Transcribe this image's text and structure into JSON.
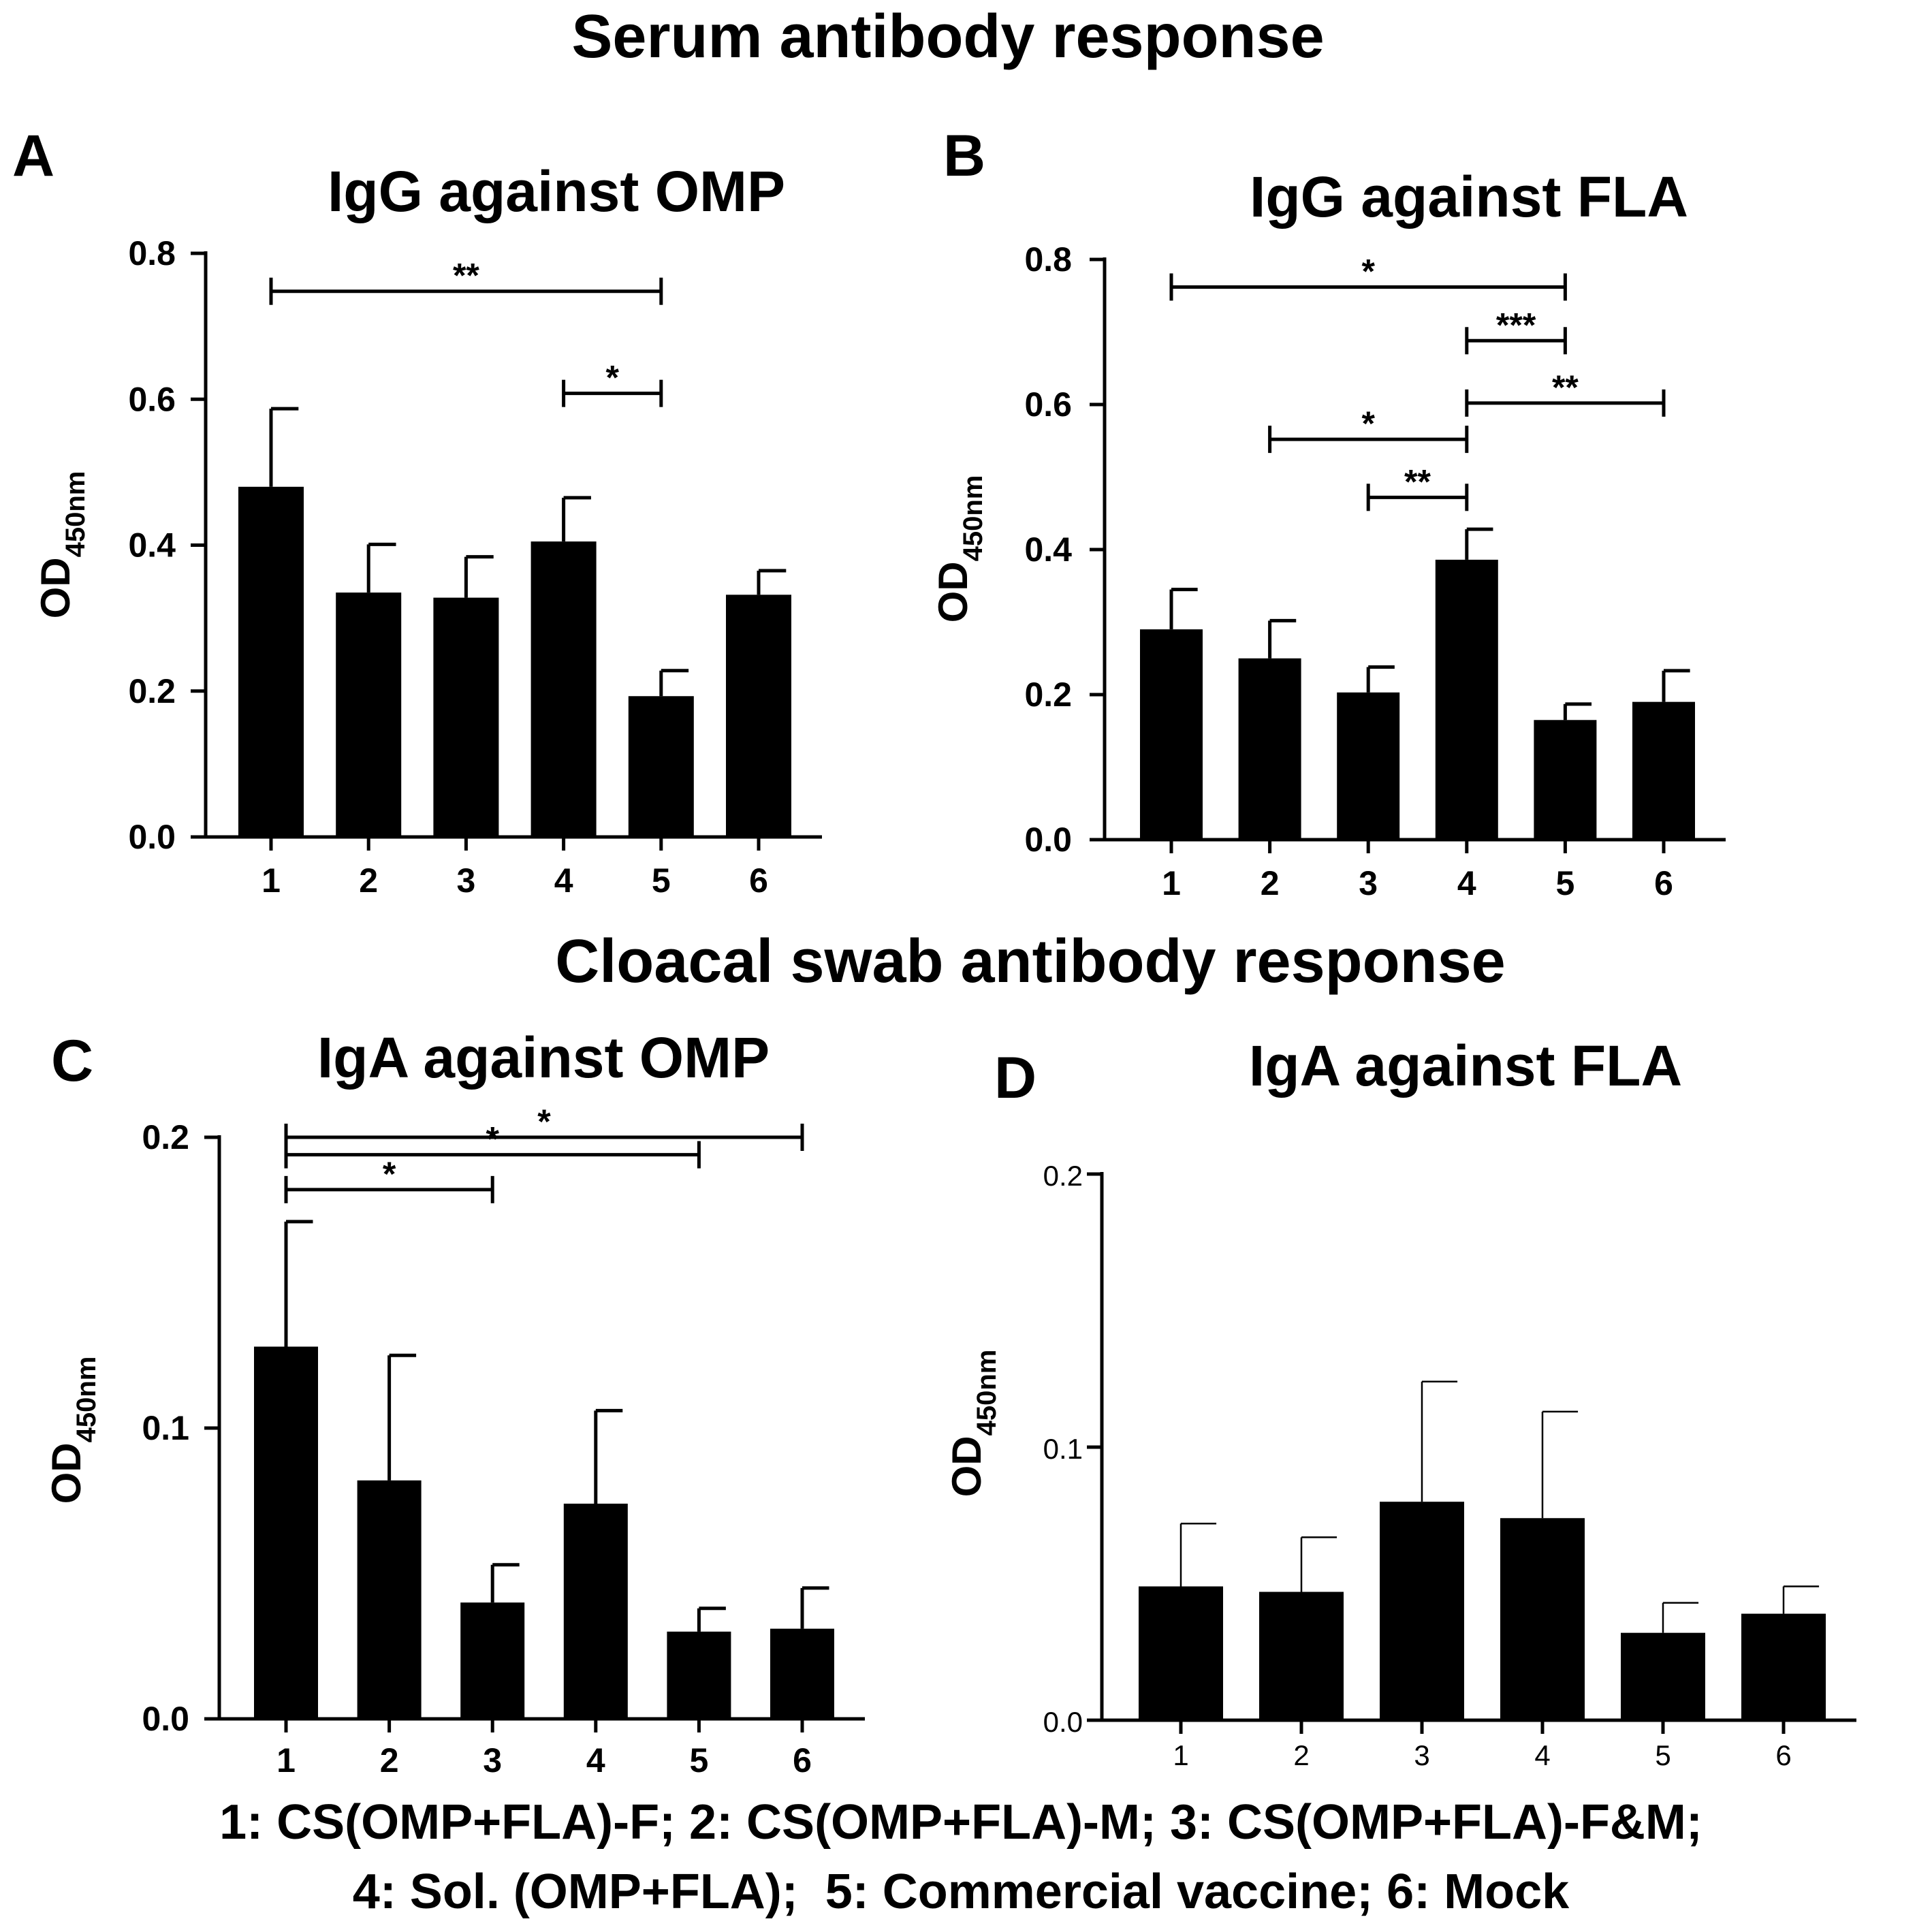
{
  "figure": {
    "section_titles": [
      "Serum antibody response",
      "Cloacal swab antibody response"
    ],
    "legend_lines": [
      "1: CS(OMP+FLA)-F; 2: CS(OMP+FLA)-M; 3: CS(OMP+FLA)-F&M;",
      "4: Sol. (OMP+FLA);  5: Commercial vaccine; 6: Mock"
    ]
  },
  "chart_data": [
    {
      "panel": "A",
      "type": "bar",
      "title": "IgG against OMP",
      "ylabel_main": "OD",
      "ylabel_sub": "450nm",
      "categories": [
        "1",
        "2",
        "3",
        "4",
        "5",
        "6"
      ],
      "values": [
        0.48,
        0.335,
        0.328,
        0.405,
        0.193,
        0.332
      ],
      "errors": [
        0.107,
        0.066,
        0.056,
        0.06,
        0.035,
        0.033
      ],
      "ylim": [
        0,
        0.8
      ],
      "yticks": [
        "0.0",
        "0.2",
        "0.4",
        "0.6",
        "0.8"
      ],
      "error_bar_style": "bold",
      "significance": [
        {
          "from": 1,
          "to": 5,
          "y": 0.748,
          "label": "**"
        },
        {
          "from": 4,
          "to": 5,
          "y": 0.608,
          "label": "*"
        }
      ]
    },
    {
      "panel": "B",
      "type": "bar",
      "title": "IgG against FLA",
      "ylabel_main": "OD",
      "ylabel_sub": "450nm",
      "categories": [
        "1",
        "2",
        "3",
        "4",
        "5",
        "6"
      ],
      "values": [
        0.29,
        0.25,
        0.203,
        0.386,
        0.165,
        0.19
      ],
      "errors": [
        0.055,
        0.052,
        0.035,
        0.042,
        0.022,
        0.043
      ],
      "ylim": [
        0,
        0.8
      ],
      "yticks": [
        "0.0",
        "0.2",
        "0.4",
        "0.6",
        "0.8"
      ],
      "error_bar_style": "bold",
      "significance": [
        {
          "from": 1,
          "to": 5,
          "y": 0.762,
          "label": "*"
        },
        {
          "from": 4,
          "to": 5,
          "y": 0.688,
          "label": "***"
        },
        {
          "from": 4,
          "to": 6,
          "y": 0.602,
          "label": "**"
        },
        {
          "from": 2,
          "to": 4,
          "y": 0.552,
          "label": "*"
        },
        {
          "from": 3,
          "to": 4,
          "y": 0.472,
          "label": "**"
        }
      ]
    },
    {
      "panel": "C",
      "type": "bar",
      "title": "IgA against OMP",
      "ylabel_main": "OD",
      "ylabel_sub": "450nm",
      "categories": [
        "1",
        "2",
        "3",
        "4",
        "5",
        "6"
      ],
      "values": [
        0.128,
        0.082,
        0.04,
        0.074,
        0.03,
        0.031
      ],
      "errors": [
        0.043,
        0.043,
        0.013,
        0.032,
        0.008,
        0.014
      ],
      "ylim": [
        0,
        0.2
      ],
      "yticks": [
        "0.0",
        "0.1",
        "0.2"
      ],
      "error_bar_style": "bold",
      "significance": [
        {
          "from": 1,
          "to": 6,
          "y": 0.2,
          "label": "*"
        },
        {
          "from": 1,
          "to": 5,
          "y": 0.194,
          "label": "*"
        },
        {
          "from": 1,
          "to": 3,
          "y": 0.182,
          "label": "*"
        }
      ]
    },
    {
      "panel": "D",
      "type": "bar",
      "title": "IgA against FLA",
      "ylabel_main": "OD",
      "ylabel_sub": "450nm",
      "categories": [
        "1",
        "2",
        "3",
        "4",
        "5",
        "6"
      ],
      "values": [
        0.049,
        0.047,
        0.08,
        0.074,
        0.032,
        0.039
      ],
      "errors": [
        0.023,
        0.02,
        0.044,
        0.039,
        0.011,
        0.01
      ],
      "ylim": [
        0,
        0.2
      ],
      "yticks": [
        "0.0",
        "0.1",
        "0.2"
      ],
      "error_bar_style": "thin",
      "significance": []
    }
  ]
}
